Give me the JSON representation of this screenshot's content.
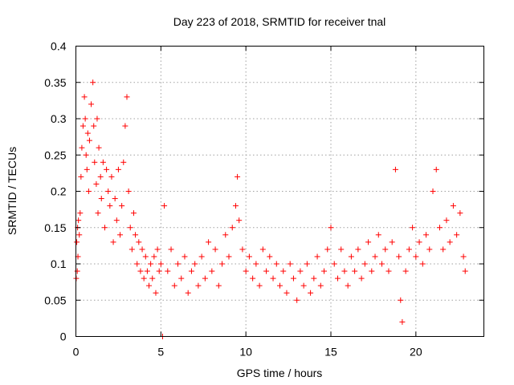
{
  "chart_data": {
    "type": "scatter",
    "title": "Day 223 of 2018, SRMTID for receiver tnal",
    "xlabel": "GPS time / hours",
    "ylabel": "SRMTID / TECUs",
    "xlim": [
      0,
      24
    ],
    "ylim": [
      0,
      0.4
    ],
    "xticks": [
      0,
      5,
      10,
      15,
      20
    ],
    "xtick_labels": [
      "0",
      "5",
      "10",
      "15",
      "20"
    ],
    "yticks": [
      0,
      0.05,
      0.1,
      0.15,
      0.2,
      0.25,
      0.3,
      0.35,
      0.4
    ],
    "ytick_labels": [
      "0",
      "0.05",
      "0.1",
      "0.15",
      "0.2",
      "0.25",
      "0.3",
      "0.35",
      "0.4"
    ],
    "grid": true,
    "legend": "none",
    "marker": "+",
    "series_color": "#ff0000",
    "series": [
      {
        "x": [
          0.02,
          0.05,
          0.08,
          0.1,
          0.12,
          0.15,
          0.2,
          0.25,
          0.3,
          0.35,
          0.42,
          0.5,
          0.55,
          0.6,
          0.65,
          0.7,
          0.75,
          0.8,
          0.9,
          1.0,
          1.05,
          1.1,
          1.2,
          1.25,
          1.3,
          1.35,
          1.45,
          1.5,
          1.6,
          1.7,
          1.8,
          1.9,
          2.0,
          2.1,
          2.2,
          2.3,
          2.4,
          2.5,
          2.6,
          2.7,
          2.8,
          2.9,
          3.0,
          3.1,
          3.2,
          3.3,
          3.4,
          3.5,
          3.6,
          3.7,
          3.8,
          3.9,
          4.0,
          4.1,
          4.2,
          4.3,
          4.4,
          4.5,
          4.6,
          4.7,
          4.8,
          4.9,
          5.0,
          5.1,
          5.2,
          5.4,
          5.6,
          5.8,
          6.0,
          6.2,
          6.4,
          6.6,
          6.8,
          7.0,
          7.2,
          7.4,
          7.6,
          7.8,
          8.0,
          8.2,
          8.4,
          8.6,
          8.8,
          9.0,
          9.2,
          9.4,
          9.5,
          9.6,
          9.8,
          10.0,
          10.2,
          10.4,
          10.6,
          10.8,
          11.0,
          11.2,
          11.4,
          11.6,
          11.8,
          12.0,
          12.2,
          12.4,
          12.6,
          12.8,
          13.0,
          13.2,
          13.4,
          13.6,
          13.8,
          14.0,
          14.2,
          14.4,
          14.6,
          14.8,
          15.0,
          15.2,
          15.4,
          15.6,
          15.8,
          16.0,
          16.2,
          16.4,
          16.6,
          16.8,
          17.0,
          17.2,
          17.4,
          17.6,
          17.8,
          18.0,
          18.2,
          18.4,
          18.6,
          18.8,
          19.0,
          19.1,
          19.2,
          19.4,
          19.6,
          19.8,
          20.0,
          20.2,
          20.4,
          20.6,
          20.8,
          21.0,
          21.2,
          21.4,
          21.6,
          21.8,
          22.0,
          22.2,
          22.4,
          22.6,
          22.8,
          22.9
        ],
        "y": [
          0.08,
          0.13,
          0.09,
          0.15,
          0.11,
          0.16,
          0.14,
          0.17,
          0.22,
          0.26,
          0.29,
          0.33,
          0.3,
          0.25,
          0.23,
          0.28,
          0.2,
          0.27,
          0.32,
          0.35,
          0.29,
          0.24,
          0.21,
          0.3,
          0.17,
          0.26,
          0.22,
          0.19,
          0.24,
          0.15,
          0.23,
          0.2,
          0.18,
          0.22,
          0.13,
          0.19,
          0.16,
          0.23,
          0.14,
          0.18,
          0.24,
          0.29,
          0.33,
          0.2,
          0.15,
          0.12,
          0.17,
          0.14,
          0.1,
          0.13,
          0.09,
          0.12,
          0.08,
          0.11,
          0.09,
          0.07,
          0.1,
          0.08,
          0.11,
          0.06,
          0.12,
          0.09,
          0.1,
          0.0,
          0.18,
          0.09,
          0.12,
          0.07,
          0.1,
          0.08,
          0.11,
          0.06,
          0.09,
          0.1,
          0.07,
          0.11,
          0.08,
          0.13,
          0.09,
          0.12,
          0.07,
          0.1,
          0.14,
          0.11,
          0.15,
          0.18,
          0.22,
          0.16,
          0.12,
          0.09,
          0.11,
          0.08,
          0.1,
          0.07,
          0.12,
          0.09,
          0.11,
          0.08,
          0.1,
          0.07,
          0.09,
          0.06,
          0.1,
          0.08,
          0.05,
          0.09,
          0.07,
          0.1,
          0.06,
          0.08,
          0.11,
          0.07,
          0.09,
          0.12,
          0.15,
          0.1,
          0.08,
          0.12,
          0.09,
          0.07,
          0.11,
          0.09,
          0.12,
          0.08,
          0.1,
          0.13,
          0.09,
          0.11,
          0.14,
          0.1,
          0.12,
          0.09,
          0.13,
          0.23,
          0.11,
          0.05,
          0.02,
          0.09,
          0.12,
          0.15,
          0.11,
          0.13,
          0.1,
          0.14,
          0.12,
          0.2,
          0.23,
          0.15,
          0.12,
          0.16,
          0.13,
          0.18,
          0.14,
          0.17,
          0.11,
          0.09
        ]
      }
    ]
  }
}
